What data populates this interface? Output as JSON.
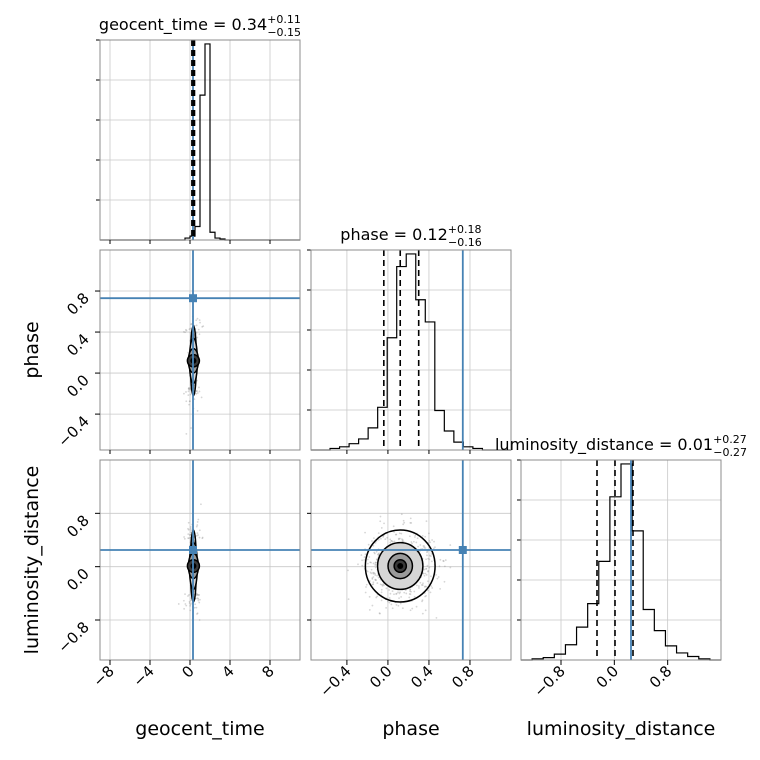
{
  "chart_data": {
    "type": "corner",
    "parameters": [
      "geocent_time",
      "phase",
      "luminosity_distance"
    ],
    "titles": [
      {
        "parameter": "geocent_time",
        "prefix": "geocent_time = ",
        "median": "0.34",
        "plus": "+0.11",
        "minus": "−0.15"
      },
      {
        "parameter": "phase",
        "prefix": "phase = ",
        "median": "0.12",
        "plus": "+0.18",
        "minus": "−0.16"
      },
      {
        "parameter": "luminosity_distance",
        "prefix": "luminosity_distance = ",
        "median": "0.01",
        "plus": "+0.27",
        "minus": "−0.27"
      }
    ],
    "ranges": {
      "geocent_time": [
        -9,
        11
      ],
      "phase": [
        -0.75,
        1.2
      ],
      "luminosity_distance": [
        -1.4,
        1.6
      ]
    },
    "ticks": {
      "geocent_time": {
        "values": [
          -8,
          -4,
          0,
          4,
          8
        ],
        "labels": [
          "−8",
          "−4",
          "0",
          "4",
          "8"
        ]
      },
      "phase": {
        "values": [
          -0.4,
          0.0,
          0.4,
          0.8
        ],
        "labels": [
          "−0.4",
          "0.0",
          "0.4",
          "0.8"
        ]
      },
      "luminosity_distance": {
        "values": [
          -0.8,
          0.0,
          0.8
        ],
        "labels": [
          "−0.8",
          "0.0",
          "0.8"
        ]
      }
    },
    "truths": {
      "geocent_time": 0.3,
      "phase": 0.73,
      "luminosity_distance": 0.25
    },
    "quantiles": {
      "geocent_time": [
        0.19,
        0.34,
        0.45
      ],
      "phase": [
        -0.04,
        0.12,
        0.3
      ],
      "luminosity_distance": [
        -0.26,
        0.01,
        0.28
      ]
    },
    "histograms": {
      "geocent_time": {
        "range": [
          -9,
          11
        ],
        "counts": [
          0,
          0,
          0,
          0,
          0,
          0,
          0,
          0,
          0,
          0,
          0,
          0,
          0,
          0,
          0,
          0,
          0,
          2,
          4,
          14,
          150,
          203,
          8,
          2,
          1,
          0,
          0,
          0,
          0,
          0,
          0,
          0,
          0,
          0,
          0,
          0,
          0,
          0,
          0,
          0
        ]
      },
      "phase": {
        "range": [
          -0.75,
          1.2
        ],
        "counts": [
          0,
          0,
          1,
          2,
          4,
          7,
          14,
          27,
          71,
          116,
          124,
          95,
          81,
          25,
          12,
          5,
          2,
          1,
          0,
          0,
          0
        ]
      },
      "luminosity_distance": {
        "range": [
          -1.4,
          1.6
        ],
        "counts": [
          0,
          1,
          2,
          5,
          13,
          28,
          48,
          84,
          139,
          167,
          110,
          43,
          25,
          12,
          6,
          3,
          1,
          0
        ]
      }
    },
    "grid": true,
    "legend": "none"
  }
}
